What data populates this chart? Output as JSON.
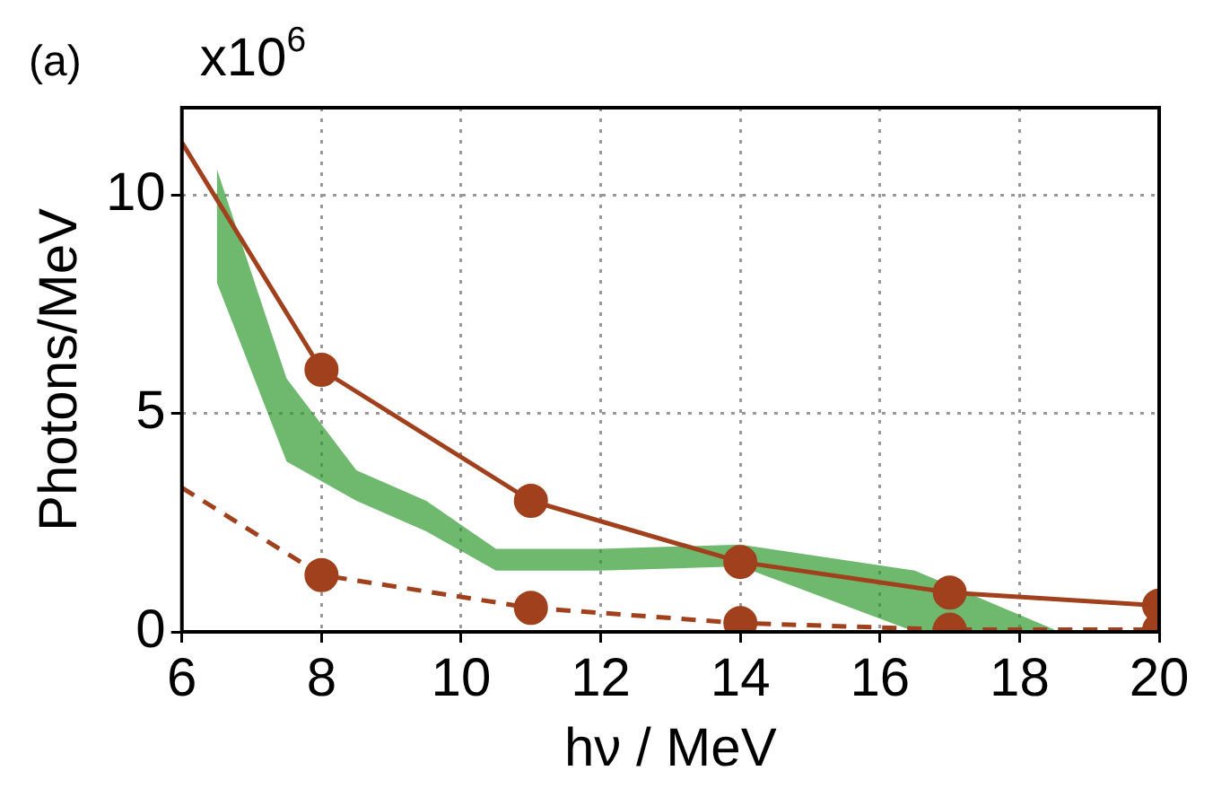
{
  "chart_data": {
    "type": "line",
    "xlabel": "hν / MeV",
    "ylabel": "Photons/MeV",
    "annotations": [
      "(a)",
      "x10$^{6}$"
    ],
    "xlim": [
      6,
      20
    ],
    "xticks": [
      6,
      8,
      10,
      12,
      14,
      16,
      18,
      20
    ],
    "ylim": [
      0,
      12
    ],
    "yticks": [
      0,
      5,
      10
    ],
    "grid": true,
    "legend": false,
    "series": [
      {
        "type": "line",
        "color": "#2e9a2e",
        "x": [
          6.5,
          7.5,
          8.5,
          9.5,
          10.5,
          12,
          14,
          16.5,
          18.5
        ],
        "values": [
          null,
          null,
          null,
          null,
          null,
          null,
          null,
          null,
          null
        ],
        "lower": [
          8.0,
          3.9,
          3.0,
          2.3,
          1.4,
          1.4,
          1.5,
          0.0,
          0.0
        ],
        "upper": [
          10.6,
          5.8,
          3.7,
          3.0,
          1.9,
          1.9,
          2.0,
          1.4,
          0.05
        ]
      },
      {
        "type": "line",
        "color": "#a0401c",
        "marker": "none",
        "line_style": "solid",
        "x": [
          6,
          8,
          11,
          14,
          17,
          20
        ],
        "values": [
          11.2,
          6.0,
          3.0,
          1.6,
          0.9,
          0.6
        ]
      },
      {
        "color": "#a0401c",
        "marker": "none",
        "line_style": "dashed",
        "x": [
          6,
          8,
          11,
          14,
          17,
          20
        ],
        "values": [
          3.3,
          1.3,
          0.55,
          0.2,
          0.05,
          0.05
        ]
      },
      {
        "type": "scatter",
        "color": "#a0401c",
        "marker": "circle",
        "x": [
          8,
          11,
          14,
          17,
          20,
          8,
          11,
          14,
          17,
          20
        ],
        "values": [
          6.0,
          3.0,
          1.6,
          0.9,
          0.6,
          1.3,
          0.55,
          0.2,
          0.05,
          0.05
        ]
      }
    ]
  }
}
